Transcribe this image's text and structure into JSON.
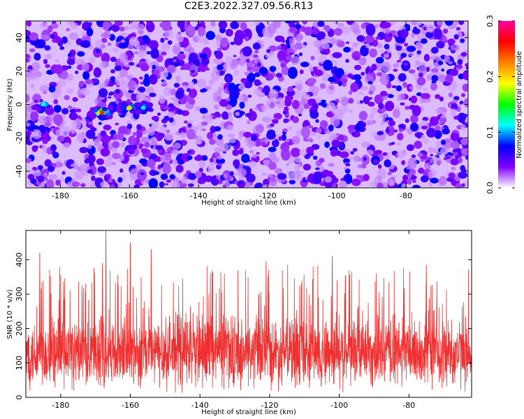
{
  "title": "C2E3.2022.327.09.56.R13",
  "chart_data": [
    {
      "type": "heatmap",
      "xlabel": "Height of straight line (km)",
      "ylabel": "Frequency (Hz)",
      "xlim": [
        -190,
        -62
      ],
      "ylim": [
        -50,
        50
      ],
      "xticks": [
        -180,
        -160,
        -140,
        -120,
        -100,
        -80
      ],
      "yticks": [
        -40,
        -20,
        0,
        20,
        40
      ],
      "colorbar": {
        "label": "Normalized spectral amplitude",
        "range": [
          0.0,
          0.3
        ],
        "ticks": [
          "0.0",
          "0.1",
          "0.2",
          "0.3"
        ],
        "colors": [
          "#ffffff",
          "#8000ff",
          "#0000ff",
          "#00ffff",
          "#00ff00",
          "#ffff00",
          "#ff8000",
          "#ff0000",
          "#ff00a0"
        ]
      },
      "typical_amplitude": 0.04,
      "peak_amplitude": 0.25,
      "hotspots": [
        {
          "x": -168,
          "y": -5,
          "value": 0.25
        },
        {
          "x": -160,
          "y": -2,
          "value": 0.2
        },
        {
          "x": -185,
          "y": 0,
          "value": 0.12
        },
        {
          "x": -156,
          "y": -2,
          "value": 0.11
        }
      ]
    },
    {
      "type": "line",
      "xlabel": "Height of straight line (km)",
      "ylabel": "SNR (10 * v/v)",
      "xlim": [
        -190,
        -62
      ],
      "ylim": [
        0,
        485
      ],
      "xticks": [
        -180,
        -160,
        -140,
        -120,
        -100,
        -80
      ],
      "yticks": [
        0,
        100,
        200,
        300,
        400
      ],
      "color": "#f03030",
      "mean_value": 130,
      "typical_upper": 230,
      "peaks": [
        {
          "x": -167,
          "value": 485
        },
        {
          "x": -160,
          "value": 450
        },
        {
          "x": -154,
          "value": 430
        },
        {
          "x": -186,
          "value": 420
        },
        {
          "x": -102,
          "value": 410
        },
        {
          "x": -121,
          "value": 395
        },
        {
          "x": -168,
          "value": 390
        },
        {
          "x": -75,
          "value": 385
        }
      ]
    }
  ]
}
